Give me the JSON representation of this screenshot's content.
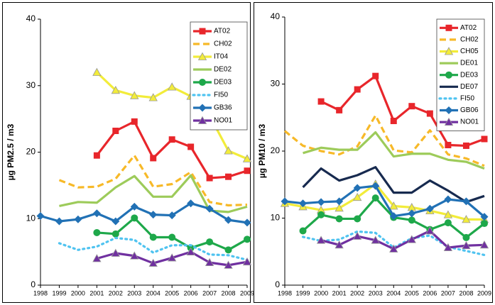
{
  "chart_data": [
    {
      "type": "line",
      "y_label": "µg PM2.5 / m3",
      "x": [
        1998,
        1999,
        2000,
        2001,
        2002,
        2003,
        2004,
        2005,
        2006,
        2007,
        2008,
        2009
      ],
      "xlim": [
        1998,
        2009
      ],
      "xticks": [
        1998,
        1999,
        2000,
        2001,
        2002,
        2003,
        2004,
        2005,
        2006,
        2007,
        2008,
        2009
      ],
      "ylim": [
        0,
        40
      ],
      "yticks": [
        0,
        10,
        20,
        30,
        40
      ],
      "grid": false,
      "legend": "top-right",
      "series": [
        {
          "name": "AT02",
          "color": "#e8262b",
          "marker": "square",
          "dash": "solid",
          "values": [
            null,
            null,
            null,
            19.5,
            23.2,
            24.6,
            19.1,
            21.9,
            20.8,
            16.1,
            16.3,
            17.2
          ]
        },
        {
          "name": "CH02",
          "color": "#f7b928",
          "marker": "none",
          "dash": "dashed",
          "values": [
            null,
            15.8,
            14.7,
            14.8,
            16.0,
            19.5,
            14.8,
            15.2,
            17.0,
            12.5,
            12.0,
            12.1
          ]
        },
        {
          "name": "IT04",
          "color": "#f2ec3a",
          "marker": "triangle",
          "dash": "solid",
          "values": [
            null,
            null,
            null,
            32.0,
            29.3,
            28.5,
            28.2,
            29.8,
            28.4,
            25.5,
            20.2,
            19.0
          ]
        },
        {
          "name": "DE02",
          "color": "#9dcb5a",
          "marker": "none",
          "dash": "solid",
          "values": [
            null,
            11.9,
            12.5,
            12.4,
            14.7,
            16.4,
            13.3,
            13.3,
            16.5,
            11.2,
            11.0,
            11.8
          ]
        },
        {
          "name": "DE03",
          "color": "#1ea84a",
          "marker": "circle",
          "dash": "solid",
          "values": [
            null,
            null,
            null,
            7.9,
            7.7,
            10.1,
            7.2,
            7.2,
            5.6,
            6.5,
            5.3,
            6.9
          ]
        },
        {
          "name": "FI50",
          "color": "#4fc3f0",
          "marker": "none",
          "dash": "dotted",
          "values": [
            null,
            6.3,
            5.3,
            5.8,
            7.1,
            6.8,
            4.9,
            6.0,
            6.0,
            4.6,
            4.5,
            3.8
          ]
        },
        {
          "name": "GB36",
          "color": "#2171b5",
          "marker": "diamond",
          "dash": "solid",
          "values": [
            10.4,
            9.6,
            9.9,
            10.8,
            9.6,
            11.8,
            10.6,
            10.5,
            12.3,
            11.5,
            9.8,
            9.4
          ]
        },
        {
          "name": "NO01",
          "color": "#7030a0",
          "marker": "triangle",
          "dash": "solid",
          "values": [
            null,
            null,
            null,
            4.0,
            4.8,
            4.4,
            3.3,
            4.1,
            5.0,
            3.4,
            3.0,
            3.5
          ]
        }
      ]
    },
    {
      "type": "line",
      "y_label": "µg PM10 / m3",
      "x": [
        1998,
        1999,
        2000,
        2001,
        2002,
        2003,
        2004,
        2005,
        2006,
        2007,
        2008,
        2009
      ],
      "xlim": [
        1998,
        2009
      ],
      "xticks": [
        1998,
        1999,
        2000,
        2001,
        2002,
        2003,
        2004,
        2005,
        2006,
        2007,
        2008,
        2009
      ],
      "ylim": [
        0,
        40
      ],
      "yticks": [
        0,
        10,
        20,
        30,
        40
      ],
      "grid": false,
      "legend": "top-right",
      "series": [
        {
          "name": "AT02",
          "color": "#e8262b",
          "marker": "square",
          "dash": "solid",
          "values": [
            null,
            null,
            27.4,
            26.1,
            29.2,
            31.2,
            24.5,
            26.7,
            25.6,
            20.9,
            20.8,
            21.8
          ]
        },
        {
          "name": "CH02",
          "color": "#f7b928",
          "marker": "none",
          "dash": "dashed",
          "values": [
            23.0,
            20.8,
            20.0,
            19.5,
            20.7,
            25.3,
            20.1,
            19.8,
            23.1,
            19.5,
            18.9,
            17.8
          ]
        },
        {
          "name": "CH05",
          "color": "#f2ec3a",
          "marker": "triangle",
          "dash": "solid",
          "values": [
            12.2,
            11.7,
            11.2,
            11.5,
            13.1,
            15.1,
            11.8,
            11.6,
            11.1,
            10.5,
            9.8,
            9.8
          ]
        },
        {
          "name": "DE01",
          "color": "#9dcb5a",
          "marker": "none",
          "dash": "solid",
          "values": [
            null,
            19.7,
            20.5,
            20.2,
            20.2,
            22.8,
            19.2,
            19.6,
            19.6,
            18.7,
            18.4,
            17.4
          ]
        },
        {
          "name": "DE03",
          "color": "#1ea84a",
          "marker": "circle",
          "dash": "solid",
          "values": [
            null,
            8.1,
            10.5,
            9.9,
            9.9,
            13.0,
            10.1,
            9.7,
            8.3,
            9.3,
            7.1,
            9.2
          ]
        },
        {
          "name": "DE07",
          "color": "#172a4f",
          "marker": "none",
          "dash": "solid",
          "values": [
            null,
            14.6,
            17.4,
            15.6,
            16.4,
            17.6,
            13.8,
            13.8,
            15.6,
            14.1,
            12.4,
            13.3
          ]
        },
        {
          "name": "FI50",
          "color": "#4fc3f0",
          "marker": "none",
          "dash": "dotted",
          "values": [
            null,
            7.2,
            6.6,
            6.8,
            8.0,
            7.8,
            5.6,
            7.0,
            7.4,
            5.7,
            5.1,
            4.5
          ]
        },
        {
          "name": "GB06",
          "color": "#2171b5",
          "marker": "diamond",
          "dash": "solid",
          "values": [
            12.5,
            12.2,
            12.4,
            12.5,
            14.5,
            14.8,
            10.3,
            10.7,
            11.4,
            12.8,
            12.5,
            10.2
          ]
        },
        {
          "name": "NO01",
          "color": "#7030a0",
          "marker": "triangle",
          "dash": "solid",
          "values": [
            null,
            null,
            6.7,
            6.0,
            7.3,
            6.7,
            5.4,
            6.8,
            8.1,
            5.6,
            5.9,
            6.0
          ]
        }
      ]
    }
  ]
}
